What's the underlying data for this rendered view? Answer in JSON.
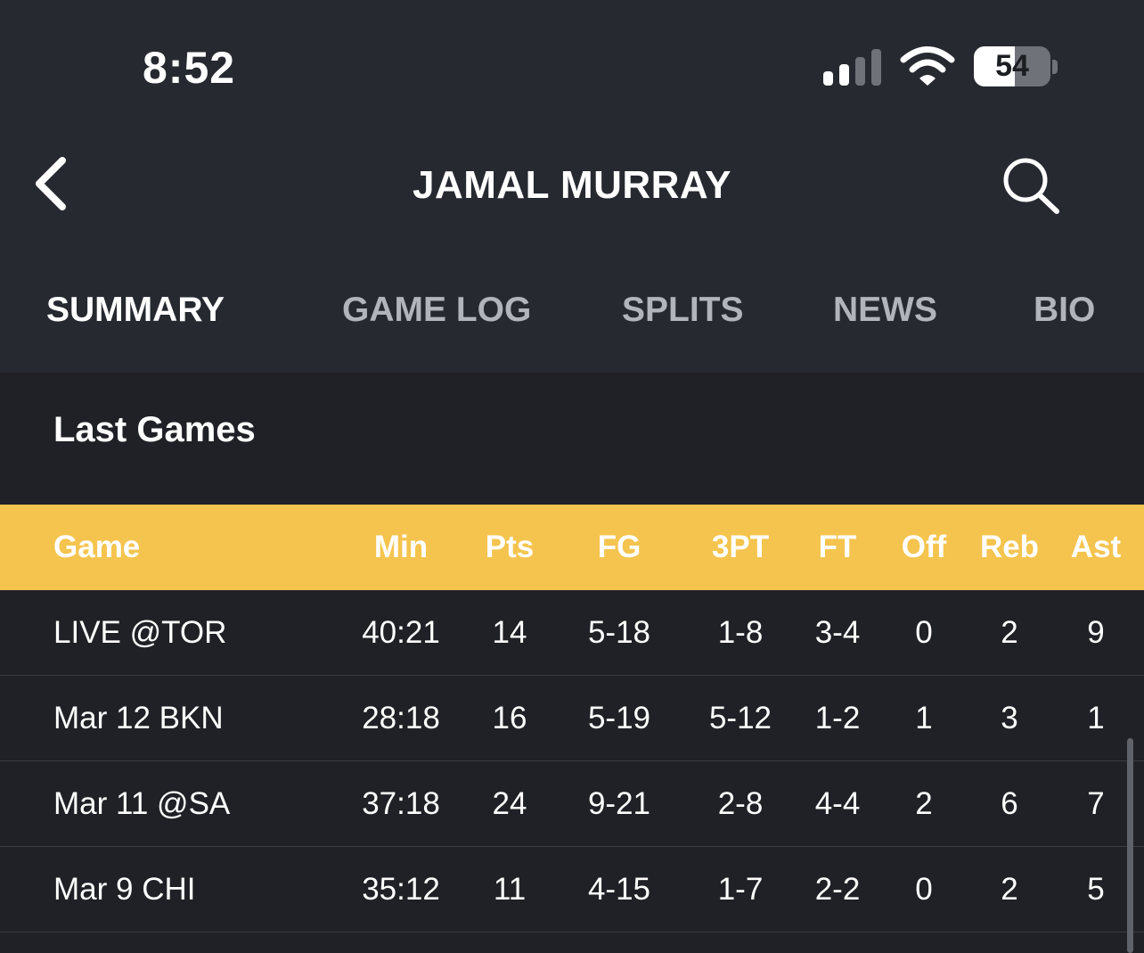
{
  "status_bar": {
    "time": "8:52",
    "battery_percent": "54",
    "battery_level": 0.54,
    "signal_bars_active": 2,
    "signal_bars_total": 4
  },
  "header": {
    "title": "JAMAL MURRAY",
    "back_icon": "chevron-left-icon",
    "search_icon": "search-icon"
  },
  "tabs": [
    {
      "label": "SUMMARY",
      "active": true
    },
    {
      "label": "GAME LOG",
      "active": false
    },
    {
      "label": "SPLITS",
      "active": false
    },
    {
      "label": "NEWS",
      "active": false
    },
    {
      "label": "BIO",
      "active": false
    }
  ],
  "last_games": {
    "title": "Last Games",
    "columns": [
      "Game",
      "Min",
      "Pts",
      "FG",
      "3PT",
      "FT",
      "Off",
      "Reb",
      "Ast"
    ],
    "rows": [
      [
        "LIVE @TOR",
        "40:21",
        "14",
        "5-18",
        "1-8",
        "3-4",
        "0",
        "2",
        "9"
      ],
      [
        "Mar 12 BKN",
        "28:18",
        "16",
        "5-19",
        "5-12",
        "1-2",
        "1",
        "3",
        "1"
      ],
      [
        "Mar 11 @SA",
        "37:18",
        "24",
        "9-21",
        "2-8",
        "4-4",
        "2",
        "6",
        "7"
      ],
      [
        "Mar 9 CHI",
        "35:12",
        "11",
        "4-15",
        "1-7",
        "2-2",
        "0",
        "2",
        "5"
      ]
    ]
  },
  "colors": {
    "header_bg": "#262930",
    "page_bg": "#202126",
    "table_header_bg": "#f4c44e",
    "inactive_tab": "#b1b4ba",
    "text": "#ffffff"
  }
}
